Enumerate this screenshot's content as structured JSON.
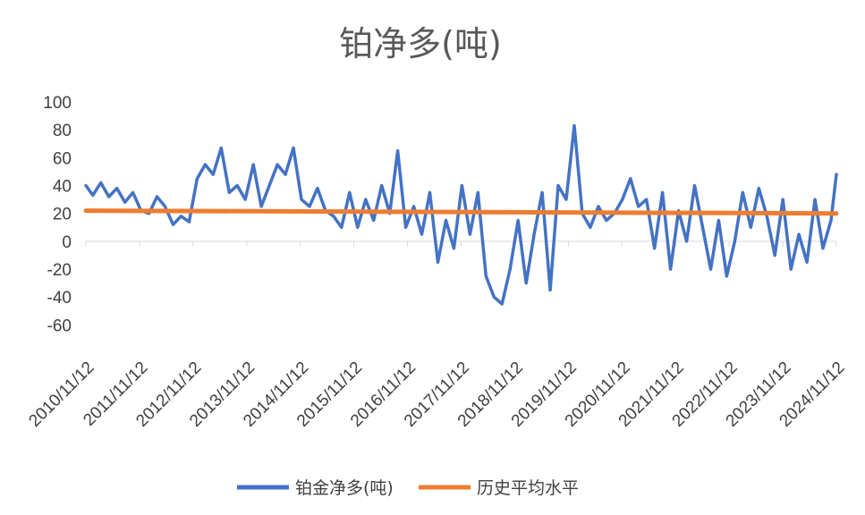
{
  "chart_data": {
    "type": "line",
    "title": "铂净多(吨)",
    "xlabel": "",
    "ylabel": "",
    "ylim": [
      -70,
      100
    ],
    "y_ticks": [
      "100",
      "80",
      "60",
      "40",
      "20",
      "0",
      "-20",
      "-40",
      "-60"
    ],
    "x_tick_labels": [
      "2010/11/12",
      "2011/11/12",
      "2012/11/12",
      "2013/11/12",
      "2014/11/12",
      "2015/11/12",
      "2016/11/12",
      "2017/11/12",
      "2018/11/12",
      "2019/11/12",
      "2020/11/12",
      "2021/11/12",
      "2022/11/12",
      "2023/11/12",
      "2024/11/12"
    ],
    "grid": false,
    "legend_position": "bottom",
    "series": [
      {
        "name": "铂金净多(吨)",
        "color": "#4472C4",
        "x": [
          2010.87,
          2011.0,
          2011.15,
          2011.3,
          2011.45,
          2011.6,
          2011.75,
          2011.9,
          2012.05,
          2012.2,
          2012.35,
          2012.5,
          2012.65,
          2012.8,
          2012.95,
          2013.1,
          2013.25,
          2013.4,
          2013.55,
          2013.7,
          2013.85,
          2014.0,
          2014.15,
          2014.3,
          2014.45,
          2014.6,
          2014.75,
          2014.9,
          2015.05,
          2015.2,
          2015.35,
          2015.5,
          2015.65,
          2015.8,
          2015.95,
          2016.1,
          2016.25,
          2016.4,
          2016.55,
          2016.7,
          2016.85,
          2017.0,
          2017.15,
          2017.3,
          2017.45,
          2017.6,
          2017.75,
          2017.9,
          2018.05,
          2018.2,
          2018.35,
          2018.5,
          2018.65,
          2018.8,
          2018.95,
          2019.1,
          2019.25,
          2019.4,
          2019.55,
          2019.7,
          2019.85,
          2020.0,
          2020.15,
          2020.3,
          2020.45,
          2020.6,
          2020.75,
          2020.9,
          2021.05,
          2021.2,
          2021.35,
          2021.5,
          2021.65,
          2021.8,
          2021.95,
          2022.1,
          2022.25,
          2022.4,
          2022.55,
          2022.7,
          2022.85,
          2023.0,
          2023.15,
          2023.3,
          2023.45,
          2023.6,
          2023.75,
          2023.9,
          2024.05,
          2024.2,
          2024.35,
          2024.5,
          2024.65,
          2024.8,
          2024.9
        ],
        "values": [
          40,
          33,
          42,
          32,
          38,
          28,
          35,
          22,
          20,
          32,
          25,
          12,
          18,
          14,
          45,
          55,
          48,
          67,
          35,
          40,
          30,
          55,
          25,
          40,
          55,
          48,
          67,
          30,
          25,
          38,
          22,
          18,
          10,
          35,
          10,
          30,
          15,
          40,
          20,
          65,
          10,
          25,
          5,
          35,
          -15,
          15,
          -5,
          40,
          5,
          35,
          -25,
          -40,
          -45,
          -20,
          15,
          -30,
          5,
          35,
          -35,
          40,
          30,
          83,
          20,
          10,
          25,
          15,
          20,
          30,
          45,
          25,
          30,
          -5,
          35,
          -20,
          22,
          0,
          40,
          10,
          -20,
          15,
          -25,
          0,
          35,
          10,
          38,
          18,
          -10,
          30,
          -20,
          5,
          -15,
          30,
          -5,
          15,
          48
        ]
      },
      {
        "name": "历史平均水平",
        "color": "#ED7D31",
        "x": [
          2010.87,
          2024.9
        ],
        "values": [
          22,
          20
        ]
      }
    ]
  }
}
